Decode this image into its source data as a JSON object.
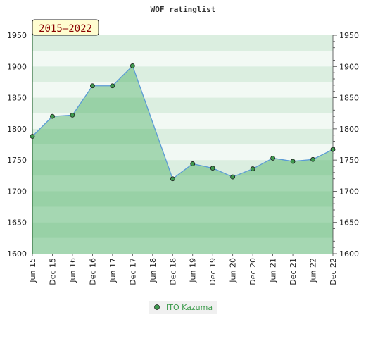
{
  "chart_data": {
    "type": "area",
    "title": "WOF ratinglist",
    "badge": "2015–2022",
    "x": [
      "Jun 15",
      "Dec 15",
      "Jun 16",
      "Dec 16",
      "Jun 17",
      "Dec 17",
      "Jun 18",
      "Dec 18",
      "Jun 19",
      "Dec 19",
      "Jun 20",
      "Dec 20",
      "Jun 21",
      "Dec 21",
      "Jun 22",
      "Dec 22"
    ],
    "series": [
      {
        "name": "ITO Kazuma",
        "values": [
          1788,
          1820,
          1822,
          1869,
          1869,
          1901,
          null,
          1720,
          1744,
          1737,
          1723,
          1736,
          1753,
          1748,
          1751,
          1767
        ]
      }
    ],
    "ylim": [
      1600,
      1950
    ],
    "yticks": [
      1600,
      1650,
      1700,
      1750,
      1800,
      1850,
      1900,
      1950
    ],
    "grid": true,
    "legend_position": "bottom-center",
    "colors": {
      "line": "#5b9bd5",
      "marker": "#3f9a4f",
      "fill": "#3caa55"
    }
  }
}
